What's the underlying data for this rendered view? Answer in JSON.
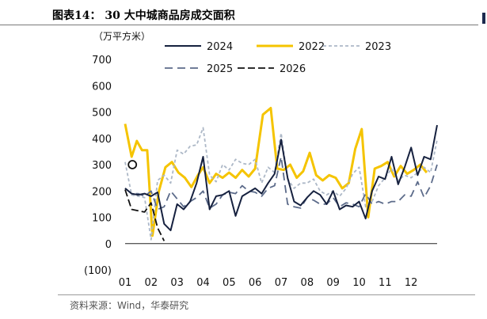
{
  "figure": {
    "title": "图表14： 30 大中城商品房成交面积",
    "unit": "（万平方米）",
    "source": "资料来源：Wind，华泰研究"
  },
  "chart_data": {
    "type": "line",
    "y_range": [
      -100,
      700
    ],
    "y_ticks": [
      -100,
      0,
      100,
      200,
      300,
      400,
      500,
      600,
      700
    ],
    "y_tick_labels": [
      "(100)",
      "0",
      "100",
      "200",
      "300",
      "400",
      "500",
      "600",
      "700"
    ],
    "x_range": [
      1,
      13
    ],
    "x_ticks": [
      1,
      2,
      3,
      4,
      5,
      6,
      7,
      8,
      9,
      10,
      11,
      12
    ],
    "x_tick_labels": [
      "01",
      "02",
      "03",
      "04",
      "05",
      "06",
      "07",
      "08",
      "09",
      "10",
      "11",
      "12"
    ],
    "x_unit": "month",
    "legend_order": [
      "2024",
      "2022",
      "2023",
      "2025",
      "2026"
    ],
    "legend_position": "top",
    "series": [
      {
        "name": "2022",
        "color": "#f5c400",
        "dash": "solid",
        "width": 3,
        "x": [
          1.0,
          1.25,
          1.45,
          1.65,
          1.85,
          2.05,
          2.3,
          2.55,
          2.8,
          3.05,
          3.3,
          3.55,
          3.8,
          4.0,
          4.25,
          4.5,
          4.75,
          5.0,
          5.25,
          5.5,
          5.75,
          6.0,
          6.3,
          6.6,
          6.85,
          7.1,
          7.35,
          7.6,
          7.85,
          8.1,
          8.35,
          8.6,
          8.85,
          9.1,
          9.35,
          9.6,
          9.85,
          10.1,
          10.35,
          10.6,
          10.85,
          11.1,
          11.35,
          11.6,
          11.85,
          12.1,
          12.35,
          12.6
        ],
        "y": [
          455,
          330,
          390,
          355,
          355,
          30,
          200,
          290,
          310,
          270,
          250,
          215,
          260,
          290,
          230,
          265,
          250,
          270,
          250,
          280,
          255,
          285,
          490,
          515,
          285,
          280,
          300,
          250,
          275,
          345,
          260,
          240,
          260,
          250,
          210,
          230,
          360,
          435,
          100,
          285,
          295,
          310,
          255,
          295,
          265,
          280,
          300,
          270
        ]
      },
      {
        "name": "2023",
        "color": "#adb8c7",
        "dash": "4 3",
        "width": 1.8,
        "x": [
          1.0,
          1.25,
          1.5,
          1.75,
          2.0,
          2.25,
          2.5,
          2.75,
          3.0,
          3.25,
          3.5,
          3.75,
          4.0,
          4.25,
          4.5,
          4.75,
          5.0,
          5.25,
          5.5,
          5.75,
          6.0,
          6.25,
          6.5,
          6.75,
          7.0,
          7.25,
          7.5,
          7.75,
          8.0,
          8.25,
          8.5,
          8.75,
          9.0,
          9.25,
          9.5,
          9.75,
          10.0,
          10.25,
          10.5,
          10.75,
          11.0,
          11.25,
          11.5,
          11.75,
          12.0,
          12.25,
          12.5,
          12.75,
          13.0
        ],
        "y": [
          310,
          185,
          180,
          175,
          15,
          240,
          260,
          230,
          355,
          340,
          370,
          375,
          440,
          260,
          235,
          300,
          280,
          320,
          305,
          300,
          320,
          230,
          290,
          270,
          420,
          245,
          210,
          230,
          230,
          245,
          200,
          185,
          200,
          180,
          210,
          265,
          290,
          140,
          160,
          220,
          250,
          285,
          240,
          260,
          250,
          270,
          290,
          270,
          395
        ]
      },
      {
        "name": "2025",
        "color": "#5c6b8a",
        "dash": "10 6",
        "width": 1.8,
        "x": [
          1.0,
          1.25,
          1.5,
          1.75,
          2.0,
          2.25,
          2.5,
          2.75,
          3.0,
          3.25,
          3.5,
          3.75,
          4.0,
          4.25,
          4.5,
          4.75,
          5.0,
          5.25,
          5.5,
          5.75,
          6.0,
          6.25,
          6.5,
          6.75,
          7.0,
          7.25,
          7.5,
          7.75,
          8.0,
          8.25,
          8.5,
          8.75,
          9.0,
          9.25,
          9.5,
          9.75,
          10.0,
          10.25,
          10.5,
          10.75,
          11.0,
          11.25,
          11.5,
          11.75,
          12.0,
          12.25,
          12.5,
          12.75,
          13.0
        ],
        "y": [
          210,
          190,
          190,
          180,
          200,
          130,
          140,
          200,
          170,
          140,
          160,
          175,
          200,
          135,
          150,
          185,
          195,
          190,
          220,
          200,
          195,
          180,
          210,
          220,
          330,
          150,
          140,
          135,
          175,
          165,
          150,
          150,
          175,
          140,
          155,
          150,
          140,
          190,
          150,
          160,
          150,
          160,
          160,
          185,
          180,
          235,
          175,
          220,
          300
        ]
      },
      {
        "name": "2024",
        "color": "#16213f",
        "dash": "solid",
        "width": 2,
        "x": [
          1.0,
          1.25,
          1.5,
          1.75,
          2.0,
          2.25,
          2.5,
          2.75,
          3.0,
          3.25,
          3.5,
          3.75,
          4.0,
          4.25,
          4.5,
          4.75,
          5.0,
          5.25,
          5.5,
          5.75,
          6.0,
          6.25,
          6.5,
          6.75,
          7.0,
          7.25,
          7.5,
          7.75,
          8.0,
          8.25,
          8.5,
          8.75,
          9.0,
          9.25,
          9.5,
          9.75,
          10.0,
          10.25,
          10.5,
          10.75,
          11.0,
          11.25,
          11.5,
          11.75,
          12.0,
          12.25,
          12.5,
          12.75,
          13.0
        ],
        "y": [
          210,
          190,
          185,
          190,
          180,
          195,
          75,
          50,
          150,
          130,
          160,
          230,
          330,
          130,
          180,
          185,
          200,
          105,
          180,
          195,
          210,
          190,
          230,
          265,
          395,
          250,
          160,
          145,
          175,
          200,
          185,
          150,
          200,
          130,
          145,
          140,
          160,
          95,
          200,
          255,
          245,
          330,
          225,
          290,
          365,
          260,
          330,
          320,
          450
        ]
      },
      {
        "name": "2026",
        "color": "#111111",
        "dash": "9 4",
        "width": 1.8,
        "x": [
          1.0,
          1.25,
          1.5,
          1.75,
          2.0,
          2.25,
          2.5
        ],
        "y": [
          205,
          130,
          125,
          120,
          155,
          60,
          10
        ]
      }
    ],
    "annotation": {
      "type": "circle",
      "x": 1.28,
      "y": 300
    }
  }
}
